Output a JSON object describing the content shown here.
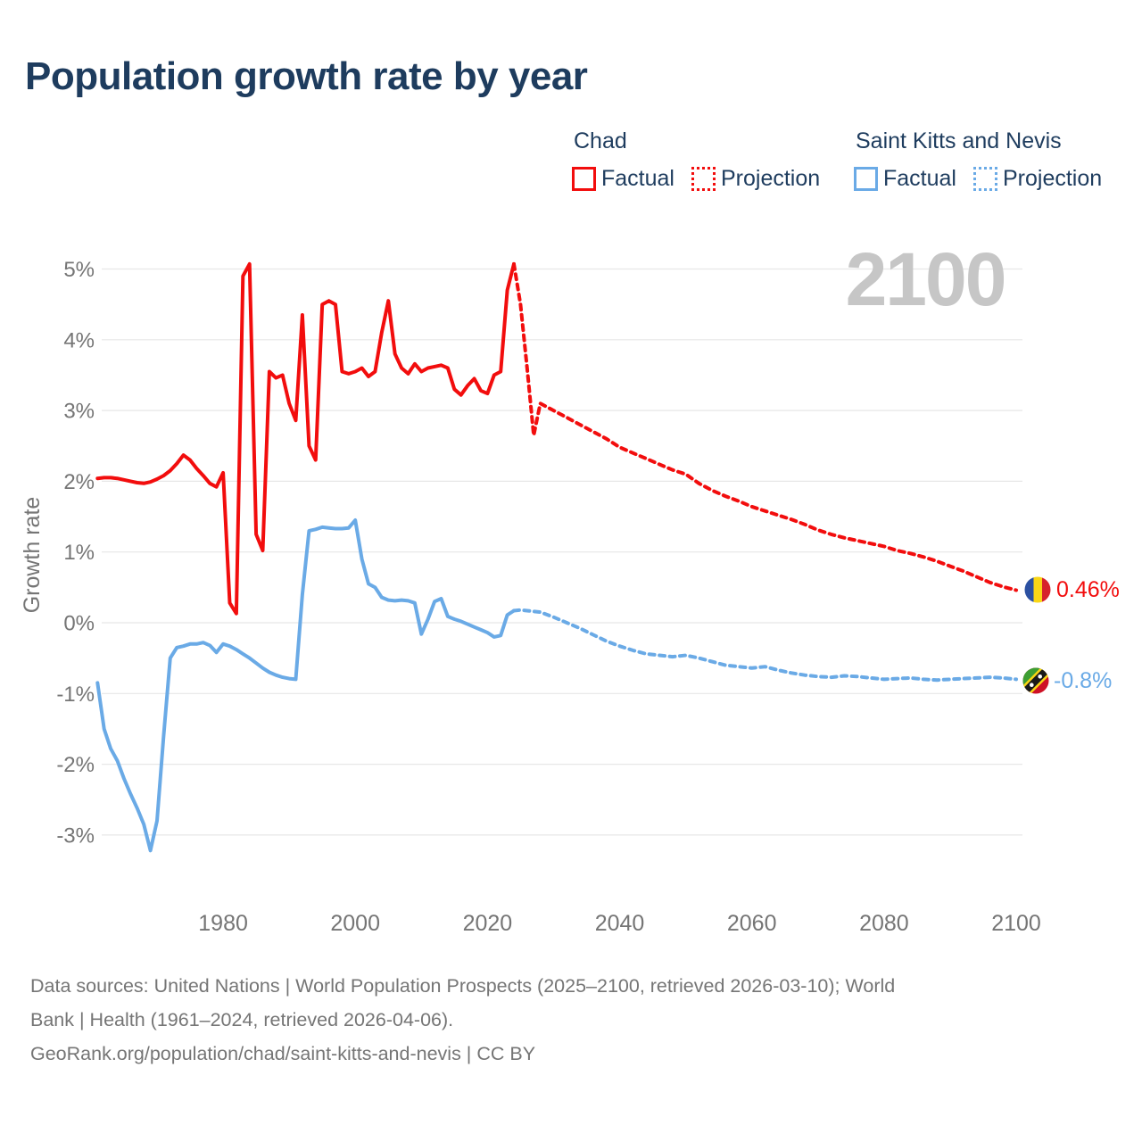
{
  "title": "Population growth rate by year",
  "watermark": "2100",
  "legend": {
    "groups": [
      {
        "name": "Chad",
        "color": "#f20d0d",
        "items": [
          {
            "label": "Factual",
            "style": "solid"
          },
          {
            "label": "Projection",
            "style": "dotted"
          }
        ]
      },
      {
        "name": "Saint Kitts and Nevis",
        "color": "#6aaae6",
        "items": [
          {
            "label": "Factual",
            "style": "solid"
          },
          {
            "label": "Projection",
            "style": "dotted"
          }
        ]
      }
    ]
  },
  "end_labels": [
    {
      "text": "0.46%",
      "color": "#f20d0d",
      "flag": "chad-flag"
    },
    {
      "text": "-0.8%",
      "color": "#6aaae6",
      "flag": "saint-kitts-and-nevis-flag"
    }
  ],
  "footer": {
    "lines": [
      "Data sources: United Nations | World Population Prospects (2025–2100, retrieved 2026-03-10); World",
      "Bank | Health (1961–2024, retrieved 2026-04-06).",
      "GeoRank.org/population/chad/saint-kitts-and-nevis | CC BY"
    ]
  },
  "chart_data": {
    "type": "line",
    "title": "Population growth rate by year",
    "xlabel": "",
    "ylabel": "Growth rate",
    "xlim": [
      1961,
      2100
    ],
    "ylim": [
      -3.5,
      5.3
    ],
    "grid": true,
    "legend_position": "top-right",
    "yticks": [
      5,
      4,
      3,
      2,
      1,
      0,
      -1,
      -2,
      -3
    ],
    "ytick_suffix": "%",
    "xticks": [
      1980,
      2000,
      2020,
      2040,
      2060,
      2080,
      2100
    ],
    "series": [
      {
        "name": "Chad Factual",
        "color": "#f20d0d",
        "style": "solid",
        "points": [
          [
            1961,
            2.04
          ],
          [
            1962,
            2.05
          ],
          [
            1963,
            2.05
          ],
          [
            1964,
            2.04
          ],
          [
            1965,
            2.02
          ],
          [
            1966,
            2.0
          ],
          [
            1967,
            1.98
          ],
          [
            1968,
            1.97
          ],
          [
            1969,
            1.99
          ],
          [
            1970,
            2.03
          ],
          [
            1971,
            2.08
          ],
          [
            1972,
            2.15
          ],
          [
            1973,
            2.25
          ],
          [
            1974,
            2.37
          ],
          [
            1975,
            2.3
          ],
          [
            1976,
            2.18
          ],
          [
            1977,
            2.08
          ],
          [
            1978,
            1.97
          ],
          [
            1979,
            1.92
          ],
          [
            1980,
            2.12
          ],
          [
            1981,
            0.28
          ],
          [
            1982,
            0.13
          ],
          [
            1983,
            4.9
          ],
          [
            1984,
            5.07
          ],
          [
            1985,
            1.25
          ],
          [
            1986,
            1.02
          ],
          [
            1987,
            3.55
          ],
          [
            1988,
            3.46
          ],
          [
            1989,
            3.5
          ],
          [
            1990,
            3.1
          ],
          [
            1991,
            2.86
          ],
          [
            1992,
            4.35
          ],
          [
            1993,
            2.5
          ],
          [
            1994,
            2.3
          ],
          [
            1995,
            4.5
          ],
          [
            1996,
            4.55
          ],
          [
            1997,
            4.5
          ],
          [
            1998,
            3.55
          ],
          [
            1999,
            3.52
          ],
          [
            2000,
            3.55
          ],
          [
            2001,
            3.6
          ],
          [
            2002,
            3.48
          ],
          [
            2003,
            3.55
          ],
          [
            2004,
            4.1
          ],
          [
            2005,
            4.55
          ],
          [
            2006,
            3.8
          ],
          [
            2007,
            3.6
          ],
          [
            2008,
            3.52
          ],
          [
            2009,
            3.66
          ],
          [
            2010,
            3.55
          ],
          [
            2011,
            3.6
          ],
          [
            2012,
            3.62
          ],
          [
            2013,
            3.64
          ],
          [
            2014,
            3.6
          ],
          [
            2015,
            3.3
          ],
          [
            2016,
            3.22
          ],
          [
            2017,
            3.35
          ],
          [
            2018,
            3.45
          ],
          [
            2019,
            3.28
          ],
          [
            2020,
            3.24
          ],
          [
            2021,
            3.5
          ],
          [
            2022,
            3.55
          ],
          [
            2023,
            4.7
          ],
          [
            2024,
            5.07
          ]
        ]
      },
      {
        "name": "Chad Projection",
        "color": "#f20d0d",
        "style": "dashed",
        "points": [
          [
            2024,
            5.07
          ],
          [
            2025,
            4.5
          ],
          [
            2026,
            3.6
          ],
          [
            2027,
            2.65
          ],
          [
            2028,
            3.1
          ],
          [
            2030,
            3.0
          ],
          [
            2032,
            2.9
          ],
          [
            2034,
            2.8
          ],
          [
            2036,
            2.7
          ],
          [
            2038,
            2.6
          ],
          [
            2040,
            2.48
          ],
          [
            2042,
            2.4
          ],
          [
            2044,
            2.32
          ],
          [
            2046,
            2.24
          ],
          [
            2048,
            2.16
          ],
          [
            2050,
            2.1
          ],
          [
            2052,
            1.97
          ],
          [
            2054,
            1.87
          ],
          [
            2056,
            1.79
          ],
          [
            2058,
            1.72
          ],
          [
            2060,
            1.64
          ],
          [
            2062,
            1.58
          ],
          [
            2064,
            1.52
          ],
          [
            2066,
            1.46
          ],
          [
            2068,
            1.39
          ],
          [
            2070,
            1.31
          ],
          [
            2072,
            1.25
          ],
          [
            2074,
            1.2
          ],
          [
            2076,
            1.16
          ],
          [
            2078,
            1.12
          ],
          [
            2080,
            1.08
          ],
          [
            2082,
            1.02
          ],
          [
            2084,
            0.98
          ],
          [
            2086,
            0.93
          ],
          [
            2088,
            0.87
          ],
          [
            2090,
            0.8
          ],
          [
            2092,
            0.73
          ],
          [
            2094,
            0.65
          ],
          [
            2096,
            0.57
          ],
          [
            2098,
            0.51
          ],
          [
            2100,
            0.46
          ]
        ]
      },
      {
        "name": "Saint Kitts and Nevis Factual",
        "color": "#6aaae6",
        "style": "solid",
        "points": [
          [
            1961,
            -0.85
          ],
          [
            1962,
            -1.5
          ],
          [
            1963,
            -1.78
          ],
          [
            1964,
            -1.95
          ],
          [
            1965,
            -2.2
          ],
          [
            1966,
            -2.42
          ],
          [
            1967,
            -2.62
          ],
          [
            1968,
            -2.85
          ],
          [
            1969,
            -3.22
          ],
          [
            1970,
            -2.8
          ],
          [
            1971,
            -1.6
          ],
          [
            1972,
            -0.5
          ],
          [
            1973,
            -0.35
          ],
          [
            1974,
            -0.33
          ],
          [
            1975,
            -0.3
          ],
          [
            1976,
            -0.3
          ],
          [
            1977,
            -0.28
          ],
          [
            1978,
            -0.32
          ],
          [
            1979,
            -0.42
          ],
          [
            1980,
            -0.3
          ],
          [
            1981,
            -0.33
          ],
          [
            1982,
            -0.38
          ],
          [
            1983,
            -0.44
          ],
          [
            1984,
            -0.5
          ],
          [
            1985,
            -0.57
          ],
          [
            1986,
            -0.64
          ],
          [
            1987,
            -0.7
          ],
          [
            1988,
            -0.74
          ],
          [
            1989,
            -0.77
          ],
          [
            1990,
            -0.79
          ],
          [
            1991,
            -0.8
          ],
          [
            1992,
            0.4
          ],
          [
            1993,
            1.3
          ],
          [
            1994,
            1.32
          ],
          [
            1995,
            1.35
          ],
          [
            1996,
            1.34
          ],
          [
            1997,
            1.33
          ],
          [
            1998,
            1.33
          ],
          [
            1999,
            1.34
          ],
          [
            2000,
            1.45
          ],
          [
            2001,
            0.9
          ],
          [
            2002,
            0.55
          ],
          [
            2003,
            0.5
          ],
          [
            2004,
            0.36
          ],
          [
            2005,
            0.32
          ],
          [
            2006,
            0.31
          ],
          [
            2007,
            0.32
          ],
          [
            2008,
            0.31
          ],
          [
            2009,
            0.28
          ],
          [
            2010,
            -0.16
          ],
          [
            2011,
            0.05
          ],
          [
            2012,
            0.3
          ],
          [
            2013,
            0.34
          ],
          [
            2014,
            0.09
          ],
          [
            2015,
            0.05
          ],
          [
            2016,
            0.02
          ],
          [
            2017,
            -0.02
          ],
          [
            2018,
            -0.06
          ],
          [
            2019,
            -0.1
          ],
          [
            2020,
            -0.14
          ],
          [
            2021,
            -0.2
          ],
          [
            2022,
            -0.18
          ],
          [
            2023,
            0.11
          ],
          [
            2024,
            0.17
          ]
        ]
      },
      {
        "name": "Saint Kitts and Nevis Projection",
        "color": "#6aaae6",
        "style": "dashed",
        "points": [
          [
            2024,
            0.17
          ],
          [
            2025,
            0.18
          ],
          [
            2026,
            0.17
          ],
          [
            2027,
            0.16
          ],
          [
            2028,
            0.15
          ],
          [
            2030,
            0.08
          ],
          [
            2032,
            0.0
          ],
          [
            2034,
            -0.08
          ],
          [
            2036,
            -0.17
          ],
          [
            2038,
            -0.26
          ],
          [
            2040,
            -0.33
          ],
          [
            2042,
            -0.39
          ],
          [
            2044,
            -0.44
          ],
          [
            2046,
            -0.46
          ],
          [
            2048,
            -0.48
          ],
          [
            2050,
            -0.46
          ],
          [
            2052,
            -0.5
          ],
          [
            2054,
            -0.55
          ],
          [
            2056,
            -0.6
          ],
          [
            2058,
            -0.62
          ],
          [
            2060,
            -0.64
          ],
          [
            2062,
            -0.62
          ],
          [
            2064,
            -0.67
          ],
          [
            2066,
            -0.71
          ],
          [
            2068,
            -0.74
          ],
          [
            2070,
            -0.76
          ],
          [
            2072,
            -0.77
          ],
          [
            2074,
            -0.75
          ],
          [
            2076,
            -0.76
          ],
          [
            2078,
            -0.78
          ],
          [
            2080,
            -0.8
          ],
          [
            2082,
            -0.79
          ],
          [
            2084,
            -0.78
          ],
          [
            2086,
            -0.8
          ],
          [
            2088,
            -0.81
          ],
          [
            2090,
            -0.8
          ],
          [
            2092,
            -0.79
          ],
          [
            2094,
            -0.78
          ],
          [
            2096,
            -0.77
          ],
          [
            2098,
            -0.78
          ],
          [
            2100,
            -0.8
          ]
        ]
      }
    ]
  }
}
